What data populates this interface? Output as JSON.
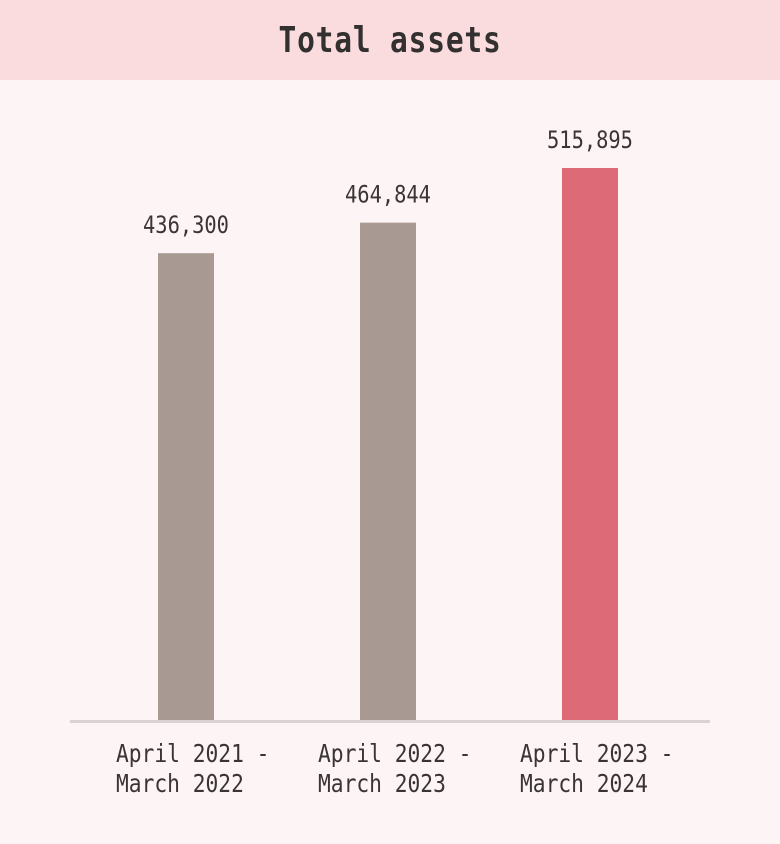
{
  "header": {
    "title": "Total assets"
  },
  "chart_data": {
    "type": "bar",
    "title": "Total assets",
    "categories": [
      [
        "April 2021 -",
        "March 2022"
      ],
      [
        "April 2022 -",
        "March 2023"
      ],
      [
        "April 2023 -",
        "March 2024"
      ]
    ],
    "values": [
      436300,
      464844,
      515895
    ],
    "value_labels": [
      "436,300",
      "464,844",
      "515,895"
    ],
    "colors": [
      "#a89a93",
      "#a89a93",
      "#dd6b77"
    ],
    "axis_color": "#d9d4d3",
    "ylim": [
      0,
      515895
    ],
    "grid": false,
    "legend": "none"
  }
}
